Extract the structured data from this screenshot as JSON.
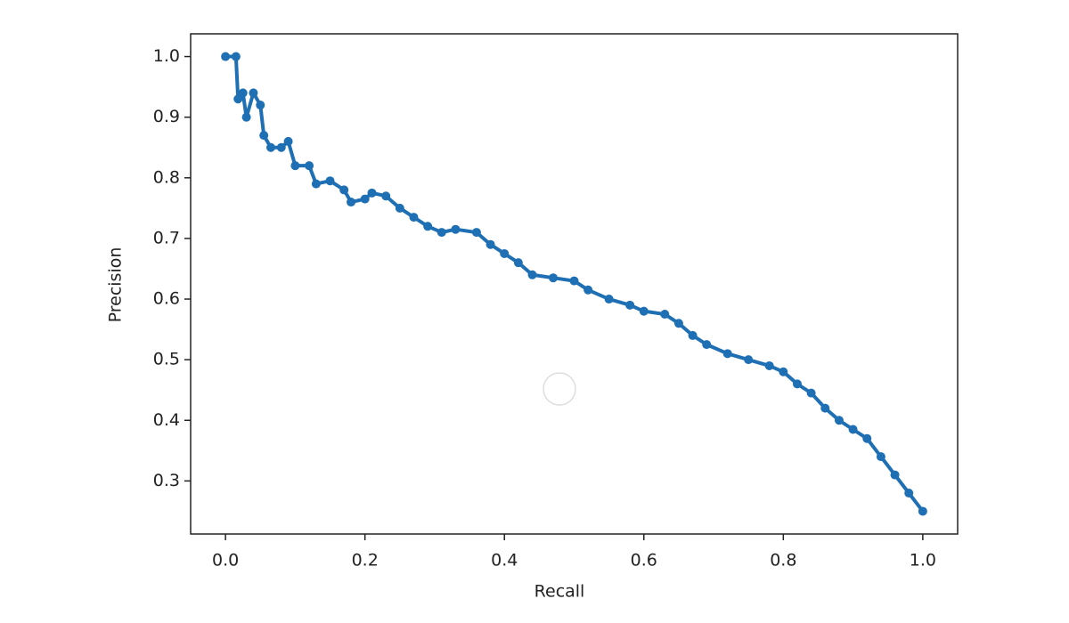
{
  "chart_data": {
    "type": "line",
    "x_label": "Recall",
    "y_label": "Precision",
    "x": [
      0,
      0.015,
      0.018,
      0.025,
      0.03,
      0.04,
      0.05,
      0.055,
      0.065,
      0.08,
      0.09,
      0.1,
      0.12,
      0.13,
      0.15,
      0.17,
      0.18,
      0.2,
      0.21,
      0.23,
      0.25,
      0.27,
      0.29,
      0.31,
      0.33,
      0.36,
      0.38,
      0.4,
      0.42,
      0.44,
      0.47,
      0.5,
      0.52,
      0.55,
      0.58,
      0.6,
      0.63,
      0.65,
      0.67,
      0.69,
      0.72,
      0.75,
      0.78,
      0.8,
      0.82,
      0.84,
      0.86,
      0.88,
      0.9,
      0.92,
      0.94,
      0.96,
      0.98,
      1.0
    ],
    "values": [
      1.0,
      1.0,
      0.93,
      0.94,
      0.9,
      0.94,
      0.92,
      0.87,
      0.85,
      0.85,
      0.86,
      0.82,
      0.82,
      0.79,
      0.795,
      0.78,
      0.76,
      0.765,
      0.775,
      0.77,
      0.75,
      0.735,
      0.72,
      0.71,
      0.715,
      0.71,
      0.69,
      0.675,
      0.66,
      0.64,
      0.635,
      0.63,
      0.615,
      0.6,
      0.59,
      0.58,
      0.575,
      0.56,
      0.54,
      0.525,
      0.51,
      0.5,
      0.49,
      0.48,
      0.46,
      0.445,
      0.42,
      0.4,
      0.385,
      0.37,
      0.34,
      0.31,
      0.28,
      0.25
    ],
    "color": "#1f6fb4",
    "xlim": [
      -0.05,
      1.05
    ],
    "xticks": [
      {
        "value": 0,
        "label": "0.0"
      },
      0.2,
      0.4,
      0.6,
      0.8,
      {
        "value": 1,
        "label": "1.0"
      }
    ],
    "ylim": [
      0.2125,
      1.0375
    ],
    "yticks": [
      0.3,
      0.4,
      0.5,
      0.6,
      0.7,
      0.8,
      0.9,
      {
        "value": 1,
        "label": "1.0"
      }
    ]
  }
}
